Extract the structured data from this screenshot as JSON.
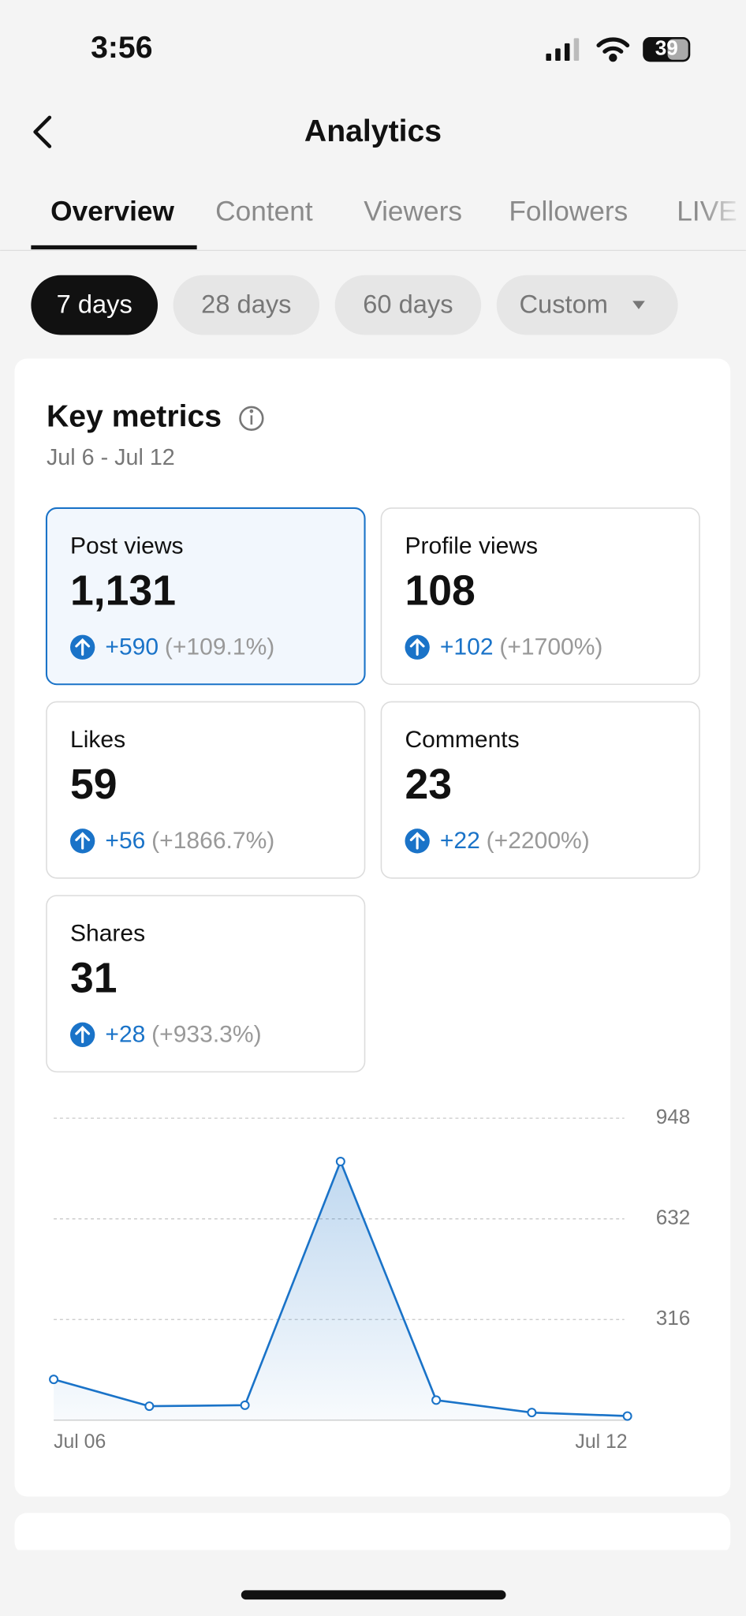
{
  "status_bar": {
    "time": "3:56",
    "battery": "39"
  },
  "header": {
    "title": "Analytics"
  },
  "tabs": [
    "Overview",
    "Content",
    "Viewers",
    "Followers",
    "LIVE"
  ],
  "periods": [
    "7 days",
    "28 days",
    "60 days",
    "Custom"
  ],
  "key_metrics": {
    "title": "Key metrics",
    "date_range": "Jul 6 - Jul 12",
    "cards": [
      {
        "label": "Post views",
        "value": "1,131",
        "change": "+590",
        "percent": "(+109.1%)"
      },
      {
        "label": "Profile views",
        "value": "108",
        "change": "+102",
        "percent": "(+1700%)"
      },
      {
        "label": "Likes",
        "value": "59",
        "change": "+56",
        "percent": "(+1866.7%)"
      },
      {
        "label": "Comments",
        "value": "23",
        "change": "+22",
        "percent": "(+2200%)"
      },
      {
        "label": "Shares",
        "value": "31",
        "change": "+28",
        "percent": "(+933.3%)"
      }
    ]
  },
  "chart_data": {
    "type": "area",
    "categories": [
      "Jul 06",
      null,
      null,
      null,
      null,
      null,
      "Jul 12"
    ],
    "values": [
      128,
      44,
      47,
      812,
      63,
      24,
      13
    ],
    "color": "#1a73c8",
    "ylim": [
      0,
      948
    ],
    "yticks": [
      316,
      632,
      948
    ],
    "grid": true
  }
}
